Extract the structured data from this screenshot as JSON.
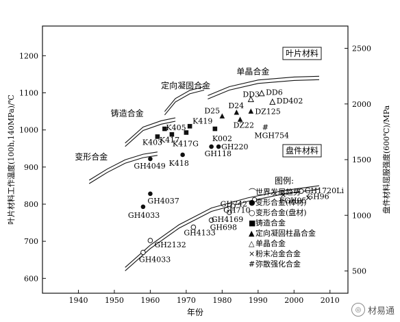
{
  "chart_data": {
    "type": "scatter",
    "xlabel": "年份",
    "ylabel_left": "叶片材料工作温度(100h,140MPa)/℃",
    "ylabel_right": "盘件材料屈服强度(600℃)/MPa",
    "xlim": [
      1930,
      2015
    ],
    "ylim_left": [
      560,
      1280
    ],
    "ylim_right": [
      300,
      2700
    ],
    "x_ticks": [
      1940,
      1950,
      1960,
      1970,
      1980,
      1990,
      2000,
      2010
    ],
    "y_left_ticks": [
      600,
      700,
      800,
      900,
      1000,
      1100,
      1200
    ],
    "y_right_ticks": [
      500,
      1000,
      1500,
      2000,
      2500
    ],
    "series": [
      {
        "name": "变形合金(棒材)",
        "marker": "filled-circle",
        "points": [
          {
            "label": "GH4049",
            "x": 1960,
            "y": 922
          },
          {
            "label": "GH4037",
            "x": 1960,
            "y": 828
          },
          {
            "label": "GH4033",
            "x": 1958,
            "y": 793
          },
          {
            "label": "K418",
            "x": 1969,
            "y": 933
          },
          {
            "label": "GH118",
            "x": 1977,
            "y": 955
          },
          {
            "label": "GH220",
            "x": 1979,
            "y": 955
          }
        ]
      },
      {
        "name": "变形合金(盘材)",
        "marker": "open-circle",
        "points": [
          {
            "label": "GH4033",
            "x": 1958,
            "y": 670
          },
          {
            "label": "GH2132",
            "x": 1960,
            "y": 702
          },
          {
            "label": "GH4133",
            "x": 1972,
            "y": 738
          },
          {
            "label": "GH698",
            "x": 1977,
            "y": 757
          },
          {
            "label": "GH4169",
            "x": 1982,
            "y": 778
          },
          {
            "label": "GH710",
            "x": 1983,
            "y": 795
          },
          {
            "label": "GH742",
            "x": 1989,
            "y": 812
          },
          {
            "label": "GH1720Li",
            "x": 2002,
            "y": 835
          }
        ]
      },
      {
        "name": "铸造合金",
        "marker": "filled-square",
        "points": [
          {
            "label": "K403",
            "x": 1962,
            "y": 982
          },
          {
            "label": "K405",
            "x": 1964,
            "y": 1003
          },
          {
            "label": "K417",
            "x": 1966,
            "y": 988
          },
          {
            "label": "K417G",
            "x": 1970,
            "y": 993
          },
          {
            "label": "K419",
            "x": 1971,
            "y": 1010
          },
          {
            "label": "K002",
            "x": 1978,
            "y": 1003
          }
        ]
      },
      {
        "name": "定向凝固柱晶合金",
        "marker": "filled-triangle",
        "points": [
          {
            "label": "D25",
            "x": 1980,
            "y": 1037
          },
          {
            "label": "D24",
            "x": 1984,
            "y": 1047
          },
          {
            "label": "DZ22",
            "x": 1985,
            "y": 1028
          },
          {
            "label": "DZ125",
            "x": 1988,
            "y": 1050
          }
        ]
      },
      {
        "name": "单晶合金",
        "marker": "open-triangle",
        "points": [
          {
            "label": "DD6",
            "x": 1991,
            "y": 1098
          },
          {
            "label": "DD3",
            "x": 1988,
            "y": 1082
          },
          {
            "label": "DD402",
            "x": 1994,
            "y": 1075
          }
        ]
      },
      {
        "name": "粉末冶金合金",
        "marker": "cross",
        "points": [
          {
            "label": "FGH95",
            "x": 1997,
            "y": 825
          },
          {
            "label": "GH96",
            "x": 2004,
            "y": 818
          }
        ]
      },
      {
        "name": "弥散强化合金",
        "marker": "hash",
        "points": [
          {
            "label": "MGH754",
            "x": 1992,
            "y": 1008
          }
        ]
      }
    ],
    "trend_labels": {
      "wrought": "变形合金",
      "cast": "铸造合金",
      "ds": "定向凝固合金",
      "sx": "单晶合金",
      "blade_box": "叶片材料",
      "disk_box": "盘件材料"
    },
    "legend": {
      "title": "图例:",
      "items": [
        {
          "symbol": "⌒",
          "label": "世界发展趋势"
        },
        {
          "symbol": "●",
          "label": "变形合金(棒材)"
        },
        {
          "symbol": "○",
          "label": "变形合金(盘材)"
        },
        {
          "symbol": "■",
          "label": "铸造合金"
        },
        {
          "symbol": "▲",
          "label": "定向凝固柱晶合金"
        },
        {
          "symbol": "△",
          "label": "单晶合金"
        },
        {
          "symbol": "×",
          "label": "粉末冶金合金"
        },
        {
          "symbol": "#",
          "label": "弥散强化合金"
        }
      ]
    }
  },
  "watermark": {
    "text": "材易通",
    "icon": "wechat-icon"
  }
}
